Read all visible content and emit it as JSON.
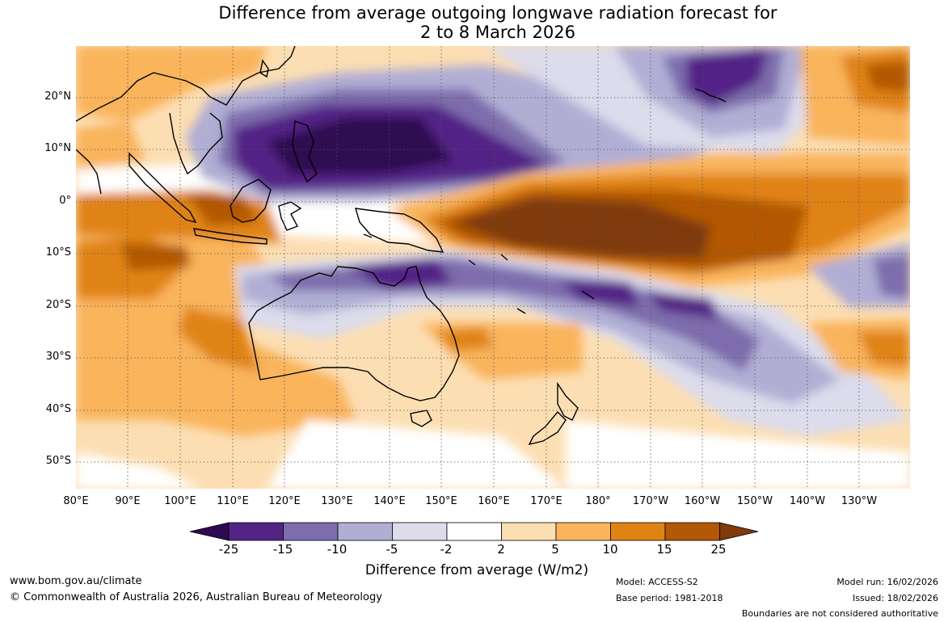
{
  "title_line1": "Difference from average outgoing longwave radiation forecast for",
  "title_line2": "2 to 8 March 2026",
  "lat_labels": [
    "20°N",
    "10°N",
    "0°",
    "10°S",
    "20°S",
    "30°S",
    "40°S",
    "50°S"
  ],
  "lon_labels": [
    "80°E",
    "90°E",
    "100°E",
    "110°E",
    "120°E",
    "130°E",
    "140°E",
    "150°E",
    "160°E",
    "170°E",
    "180°",
    "170°W",
    "160°W",
    "150°W",
    "140°W",
    "130°W"
  ],
  "colorbar": {
    "labels": [
      "-25",
      "-15",
      "-10",
      "-5",
      "-2",
      "2",
      "5",
      "10",
      "15",
      "25"
    ],
    "colors": [
      "#2d0a51",
      "#532386",
      "#7d6dac",
      "#b1aed4",
      "#dcdcec",
      "#ffffff",
      "#fcdeb3",
      "#f9b45c",
      "#e08314",
      "#b35806",
      "#7f3b08"
    ],
    "title": "Difference from average (W/m2)"
  },
  "footer": {
    "website": "www.bom.gov.au/climate",
    "copyright": "© Commonwealth of Australia 2026, Australian Bureau of Meteorology",
    "model": "Model: ACCESS-S2",
    "base_period": "Base period: 1981-2018",
    "model_run": "Model run: 16/02/2026",
    "issued": "Issued: 18/02/2026",
    "disclaimer": "Boundaries are not considered authoritative"
  }
}
